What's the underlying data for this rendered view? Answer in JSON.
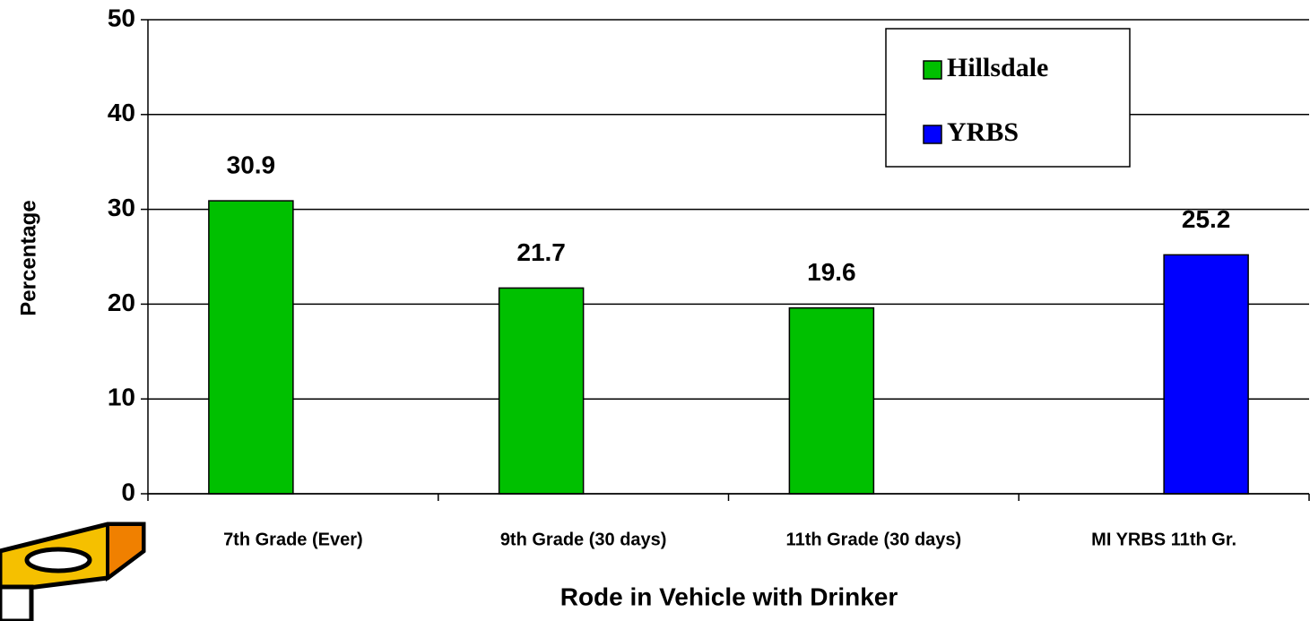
{
  "chart_data": {
    "type": "bar",
    "categories": [
      "7th Grade (Ever)",
      "9th Grade (30 days)",
      "11th Grade (30 days)",
      "MI YRBS 11th Gr."
    ],
    "series": [
      {
        "name": "Hillsdale",
        "color": "#00c000",
        "values": [
          30.9,
          21.7,
          19.6,
          null
        ]
      },
      {
        "name": "YRBS",
        "color": "#0000ff",
        "values": [
          null,
          null,
          null,
          25.2
        ]
      }
    ],
    "ylim": [
      0,
      50
    ],
    "yticks": [
      0,
      10,
      20,
      30,
      40,
      50
    ],
    "grid": true,
    "y_label": "Percentage",
    "x_label": "Rode in Vehicle with Drinker"
  }
}
